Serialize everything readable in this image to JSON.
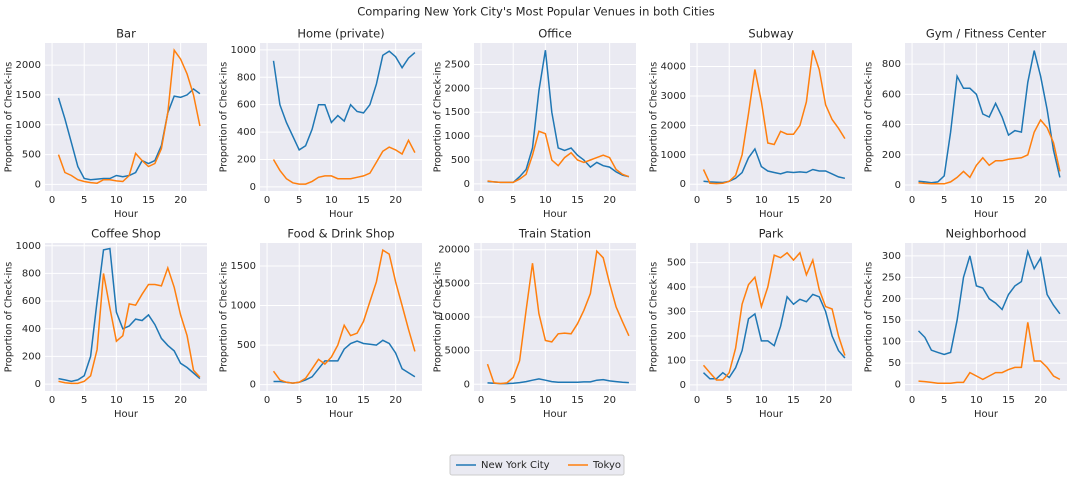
{
  "title": "Comparing New York City's Most Popular Venues in both Cities",
  "chart_data": [
    {
      "type": "line",
      "title": "Bar",
      "xlabel": "Hour",
      "ylabel": "Proportion of Check-ins",
      "x": [
        1,
        2,
        3,
        4,
        5,
        6,
        7,
        8,
        9,
        10,
        11,
        12,
        13,
        14,
        15,
        16,
        17,
        18,
        19,
        20,
        21,
        22,
        23
      ],
      "xlim": [
        -1.1,
        24.1
      ],
      "xticks": [
        0,
        5,
        10,
        15,
        20
      ],
      "ylim": [
        -110,
        2370
      ],
      "yticks": [
        0,
        500,
        1000,
        1500,
        2000
      ],
      "grid": true,
      "series": [
        {
          "name": "New York City",
          "color": "#1f77b4",
          "values": [
            1450,
            1100,
            700,
            300,
            100,
            80,
            90,
            100,
            100,
            150,
            130,
            150,
            200,
            400,
            350,
            400,
            650,
            1200,
            1480,
            1460,
            1500,
            1600,
            1520
          ]
        },
        {
          "name": "Tokyo",
          "color": "#ff7f0e",
          "values": [
            500,
            200,
            150,
            80,
            50,
            30,
            20,
            80,
            80,
            60,
            50,
            150,
            520,
            400,
            300,
            350,
            600,
            1200,
            2250,
            2100,
            1850,
            1500,
            980
          ]
        }
      ]
    },
    {
      "type": "line",
      "title": "Home (private)",
      "xlabel": "Hour",
      "ylabel": "Proportion of Check-ins",
      "x": [
        1,
        2,
        3,
        4,
        5,
        6,
        7,
        8,
        9,
        10,
        11,
        12,
        13,
        14,
        15,
        16,
        17,
        18,
        19,
        20,
        21,
        22,
        23
      ],
      "xlim": [
        -1.1,
        24.1
      ],
      "xticks": [
        0,
        5,
        10,
        15,
        20
      ],
      "ylim": [
        -30,
        1050
      ],
      "yticks": [
        0,
        200,
        400,
        600,
        800,
        1000
      ],
      "grid": true,
      "series": [
        {
          "name": "New York City",
          "color": "#1f77b4",
          "values": [
            920,
            600,
            470,
            370,
            270,
            300,
            420,
            600,
            600,
            470,
            520,
            480,
            600,
            550,
            540,
            600,
            750,
            960,
            990,
            950,
            870,
            940,
            980
          ]
        },
        {
          "name": "Tokyo",
          "color": "#ff7f0e",
          "values": [
            200,
            120,
            60,
            30,
            20,
            20,
            40,
            70,
            80,
            80,
            60,
            60,
            60,
            70,
            80,
            100,
            180,
            260,
            290,
            270,
            240,
            340,
            250
          ]
        }
      ]
    },
    {
      "type": "line",
      "title": "Office",
      "xlabel": "Hour",
      "ylabel": "Proportion of Check-ins",
      "x": [
        1,
        2,
        3,
        4,
        5,
        6,
        7,
        8,
        9,
        10,
        11,
        12,
        13,
        14,
        15,
        16,
        17,
        18,
        19,
        20,
        21,
        22,
        23
      ],
      "xlim": [
        -1.1,
        24.1
      ],
      "xticks": [
        0,
        5,
        10,
        15,
        20
      ],
      "ylim": [
        -150,
        2950
      ],
      "yticks": [
        0,
        500,
        1000,
        1500,
        2000,
        2500
      ],
      "grid": true,
      "series": [
        {
          "name": "New York City",
          "color": "#1f77b4",
          "values": [
            50,
            40,
            30,
            30,
            30,
            150,
            300,
            750,
            1950,
            2800,
            1500,
            750,
            700,
            750,
            600,
            500,
            350,
            450,
            380,
            350,
            250,
            180,
            150
          ]
        },
        {
          "name": "Tokyo",
          "color": "#ff7f0e",
          "values": [
            60,
            40,
            30,
            30,
            30,
            100,
            200,
            600,
            1100,
            1050,
            500,
            380,
            550,
            650,
            500,
            450,
            500,
            550,
            600,
            550,
            300,
            200,
            150
          ]
        }
      ]
    },
    {
      "type": "line",
      "title": "Subway",
      "xlabel": "Hour",
      "ylabel": "Proportion of Check-ins",
      "x": [
        1,
        2,
        3,
        4,
        5,
        6,
        7,
        8,
        9,
        10,
        11,
        12,
        13,
        14,
        15,
        16,
        17,
        18,
        19,
        20,
        21,
        22,
        23
      ],
      "xlim": [
        -1.1,
        24.1
      ],
      "xticks": [
        0,
        5,
        10,
        15,
        20
      ],
      "ylim": [
        -230,
        4800
      ],
      "yticks": [
        0,
        1000,
        2000,
        3000,
        4000
      ],
      "grid": true,
      "series": [
        {
          "name": "New York City",
          "color": "#1f77b4",
          "values": [
            100,
            80,
            70,
            60,
            100,
            200,
            400,
            900,
            1200,
            600,
            450,
            400,
            350,
            420,
            400,
            420,
            400,
            500,
            450,
            450,
            350,
            250,
            200
          ]
        },
        {
          "name": "Tokyo",
          "color": "#ff7f0e",
          "values": [
            500,
            30,
            20,
            30,
            100,
            300,
            1000,
            2400,
            3900,
            2800,
            1400,
            1350,
            1800,
            1700,
            1700,
            2000,
            2800,
            4550,
            3900,
            2700,
            2200,
            1900,
            1550
          ]
        }
      ]
    },
    {
      "type": "line",
      "title": "Gym / Fitness Center",
      "xlabel": "Hour",
      "ylabel": "Proportion of Check-ins",
      "x": [
        1,
        2,
        3,
        4,
        5,
        6,
        7,
        8,
        9,
        10,
        11,
        12,
        13,
        14,
        15,
        16,
        17,
        18,
        19,
        20,
        21,
        22,
        23
      ],
      "xlim": [
        -1.1,
        24.1
      ],
      "xticks": [
        0,
        5,
        10,
        15,
        20
      ],
      "ylim": [
        -40,
        940
      ],
      "yticks": [
        0,
        200,
        400,
        600,
        800
      ],
      "grid": true,
      "series": [
        {
          "name": "New York City",
          "color": "#1f77b4",
          "values": [
            25,
            20,
            15,
            20,
            60,
            350,
            720,
            640,
            640,
            600,
            470,
            450,
            540,
            450,
            330,
            360,
            350,
            680,
            890,
            720,
            500,
            230,
            50
          ]
        },
        {
          "name": "Tokyo",
          "color": "#ff7f0e",
          "values": [
            15,
            10,
            8,
            8,
            8,
            20,
            50,
            90,
            50,
            130,
            180,
            130,
            160,
            160,
            170,
            175,
            180,
            200,
            350,
            430,
            380,
            280,
            90
          ]
        }
      ]
    },
    {
      "type": "line",
      "title": "Coffee Shop",
      "xlabel": "Hour",
      "ylabel": "Proportion of Check-ins",
      "x": [
        1,
        2,
        3,
        4,
        5,
        6,
        7,
        8,
        9,
        10,
        11,
        12,
        13,
        14,
        15,
        16,
        17,
        18,
        19,
        20,
        21,
        22,
        23
      ],
      "xlim": [
        -1.1,
        24.1
      ],
      "xticks": [
        0,
        5,
        10,
        15,
        20
      ],
      "ylim": [
        -50,
        1020
      ],
      "yticks": [
        0,
        200,
        400,
        600,
        800,
        1000
      ],
      "grid": true,
      "series": [
        {
          "name": "New York City",
          "color": "#1f77b4",
          "values": [
            40,
            30,
            20,
            30,
            60,
            200,
            600,
            970,
            980,
            520,
            400,
            420,
            470,
            460,
            500,
            430,
            330,
            280,
            240,
            150,
            120,
            80,
            40
          ]
        },
        {
          "name": "Tokyo",
          "color": "#ff7f0e",
          "values": [
            20,
            10,
            5,
            5,
            20,
            60,
            250,
            800,
            550,
            310,
            350,
            580,
            570,
            650,
            720,
            720,
            710,
            840,
            700,
            500,
            350,
            100,
            50
          ]
        }
      ]
    },
    {
      "type": "line",
      "title": "Food & Drink Shop",
      "xlabel": "Hour",
      "ylabel": "Proportion of Check-ins",
      "x": [
        1,
        2,
        3,
        4,
        5,
        6,
        7,
        8,
        9,
        10,
        11,
        12,
        13,
        14,
        15,
        16,
        17,
        18,
        19,
        20,
        21,
        22,
        23
      ],
      "xlim": [
        -1.1,
        24.1
      ],
      "xticks": [
        0,
        5,
        10,
        15,
        20
      ],
      "ylim": [
        -80,
        1790
      ],
      "yticks": [
        0,
        500,
        1000,
        1500
      ],
      "grid": true,
      "series": [
        {
          "name": "New York City",
          "color": "#1f77b4",
          "values": [
            40,
            40,
            30,
            20,
            30,
            60,
            100,
            200,
            300,
            300,
            300,
            450,
            520,
            550,
            520,
            510,
            500,
            560,
            520,
            400,
            200,
            150,
            100
          ]
        },
        {
          "name": "Tokyo",
          "color": "#ff7f0e",
          "values": [
            170,
            60,
            30,
            20,
            30,
            80,
            200,
            320,
            260,
            350,
            500,
            750,
            620,
            650,
            800,
            1050,
            1300,
            1700,
            1650,
            1300,
            1000,
            700,
            420
          ]
        }
      ]
    },
    {
      "type": "line",
      "title": "Train Station",
      "xlabel": "Hour",
      "ylabel": "Proportion of Check-ins",
      "x": [
        1,
        2,
        3,
        4,
        5,
        6,
        7,
        8,
        9,
        10,
        11,
        12,
        13,
        14,
        15,
        16,
        17,
        18,
        19,
        20,
        21,
        22,
        23
      ],
      "xlim": [
        -1.1,
        24.1
      ],
      "xticks": [
        0,
        5,
        10,
        15,
        20
      ],
      "ylim": [
        -1000,
        21000
      ],
      "yticks": [
        0,
        5000,
        10000,
        15000,
        20000
      ],
      "grid": true,
      "series": [
        {
          "name": "New York City",
          "color": "#1f77b4",
          "values": [
            200,
            150,
            100,
            100,
            150,
            250,
            400,
            600,
            800,
            600,
            400,
            300,
            300,
            300,
            300,
            350,
            350,
            600,
            700,
            500,
            400,
            300,
            250
          ]
        },
        {
          "name": "Tokyo",
          "color": "#ff7f0e",
          "values": [
            3000,
            200,
            100,
            200,
            1000,
            3500,
            11000,
            18000,
            10500,
            6500,
            6300,
            7500,
            7600,
            7500,
            9000,
            11000,
            13500,
            19800,
            18800,
            15000,
            11500,
            9300,
            7200
          ]
        }
      ]
    },
    {
      "type": "line",
      "title": "Park",
      "xlabel": "Hour",
      "ylabel": "Proportion of Check-ins",
      "x": [
        1,
        2,
        3,
        4,
        5,
        6,
        7,
        8,
        9,
        10,
        11,
        12,
        13,
        14,
        15,
        16,
        17,
        18,
        19,
        20,
        21,
        22,
        23
      ],
      "xlim": [
        -1.1,
        24.1
      ],
      "xticks": [
        0,
        5,
        10,
        15,
        20
      ],
      "ylim": [
        -25,
        580
      ],
      "yticks": [
        0,
        100,
        200,
        300,
        400,
        500
      ],
      "grid": true,
      "series": [
        {
          "name": "New York City",
          "color": "#1f77b4",
          "values": [
            50,
            25,
            25,
            50,
            30,
            70,
            140,
            270,
            290,
            180,
            180,
            160,
            240,
            360,
            330,
            350,
            340,
            370,
            360,
            300,
            200,
            140,
            110
          ]
        },
        {
          "name": "Tokyo",
          "color": "#ff7f0e",
          "values": [
            80,
            50,
            20,
            20,
            50,
            150,
            330,
            410,
            440,
            320,
            400,
            530,
            520,
            540,
            510,
            540,
            450,
            510,
            390,
            320,
            310,
            200,
            120
          ]
        }
      ]
    },
    {
      "type": "line",
      "title": "Neighborhood",
      "xlabel": "Hour",
      "ylabel": "Proportion of Check-ins",
      "x": [
        1,
        2,
        3,
        4,
        5,
        6,
        7,
        8,
        9,
        10,
        11,
        12,
        13,
        14,
        15,
        16,
        17,
        18,
        19,
        20,
        21,
        22,
        23
      ],
      "xlim": [
        -1.1,
        24.1
      ],
      "xticks": [
        0,
        5,
        10,
        15,
        20
      ],
      "ylim": [
        -15,
        330
      ],
      "yticks": [
        0,
        50,
        100,
        150,
        200,
        250,
        300
      ],
      "grid": true,
      "series": [
        {
          "name": "New York City",
          "color": "#1f77b4",
          "values": [
            125,
            110,
            80,
            75,
            70,
            75,
            150,
            250,
            300,
            230,
            225,
            200,
            190,
            175,
            210,
            230,
            240,
            310,
            270,
            295,
            210,
            185,
            165
          ]
        },
        {
          "name": "Tokyo",
          "color": "#ff7f0e",
          "values": [
            8,
            7,
            5,
            3,
            3,
            3,
            5,
            5,
            28,
            20,
            12,
            20,
            28,
            28,
            35,
            40,
            40,
            145,
            55,
            55,
            40,
            20,
            12
          ]
        }
      ]
    }
  ]
}
